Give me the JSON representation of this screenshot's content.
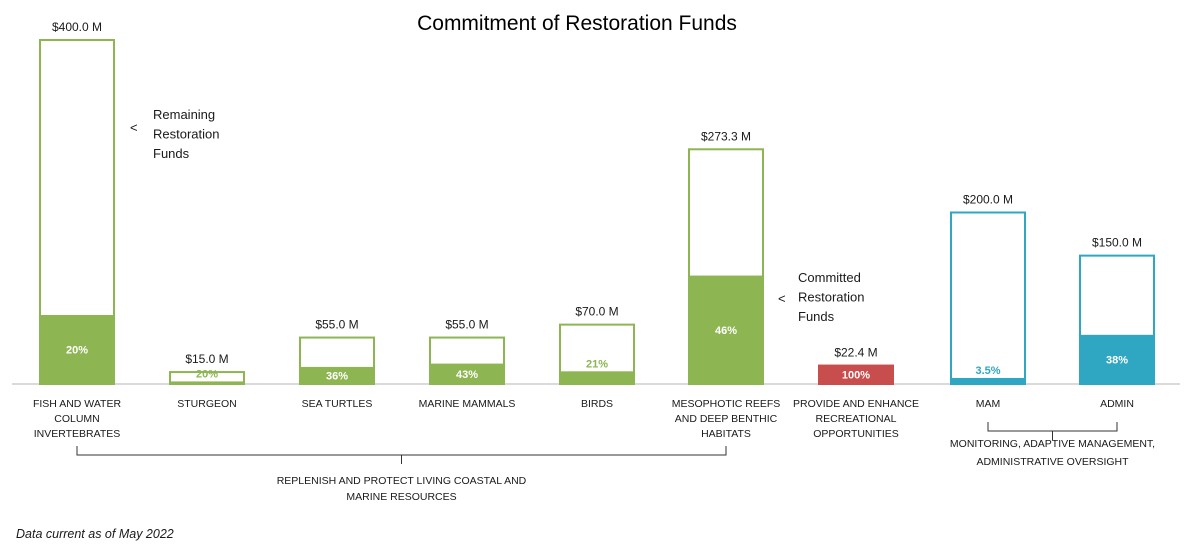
{
  "chart_data": {
    "type": "bar",
    "title": "Commitment of Restoration Funds",
    "unit": "$M",
    "categories": [
      [
        "FISH AND WATER",
        "COLUMN",
        "INVERTEBRATES"
      ],
      [
        "STURGEON"
      ],
      [
        "SEA TURTLES"
      ],
      [
        "MARINE MAMMALS"
      ],
      [
        "BIRDS"
      ],
      [
        "MESOPHOTIC REEFS",
        "AND DEEP BENTHIC",
        "HABITATS"
      ],
      [
        "PROVIDE AND ENHANCE",
        "RECREATIONAL",
        "OPPORTUNITIES"
      ],
      [
        "MAM"
      ],
      [
        "ADMIN"
      ]
    ],
    "totals": [
      400.0,
      15.0,
      55.0,
      55.0,
      70.0,
      273.3,
      22.4,
      200.0,
      150.0
    ],
    "total_labels": [
      "$400.0 M",
      "$15.0 M",
      "$55.0 M",
      "$55.0 M",
      "$70.0 M",
      "$273.3 M",
      "$22.4 M",
      "$200.0 M",
      "$150.0 M"
    ],
    "committed_percent": [
      20,
      20,
      36,
      43,
      21,
      46,
      100,
      3.5,
      38
    ],
    "committed_labels": [
      "20%",
      "20%",
      "36%",
      "43%",
      "21%",
      "46%",
      "100%",
      "3.5%",
      "38%"
    ],
    "colors": [
      "#8db552",
      "#8db552",
      "#8db552",
      "#8db552",
      "#8db552",
      "#8db552",
      "#c84d4d",
      "#2fa6c2",
      "#2fa6c2"
    ],
    "annotations": {
      "remaining": [
        "Remaining",
        "Restoration",
        "Funds"
      ],
      "committed": [
        "Committed",
        "Restoration",
        "Funds"
      ],
      "arrow": "<"
    },
    "groups": [
      {
        "label": [
          "REPLENISH AND PROTECT LIVING COASTAL AND",
          "MARINE RESOURCES"
        ],
        "from": 0,
        "to": 5
      },
      {
        "label": [
          "MONITORING, ADAPTIVE MANAGEMENT,",
          "ADMINISTRATIVE OVERSIGHT"
        ],
        "from": 7,
        "to": 8
      }
    ],
    "footnote": "Data current as of May 2022"
  }
}
